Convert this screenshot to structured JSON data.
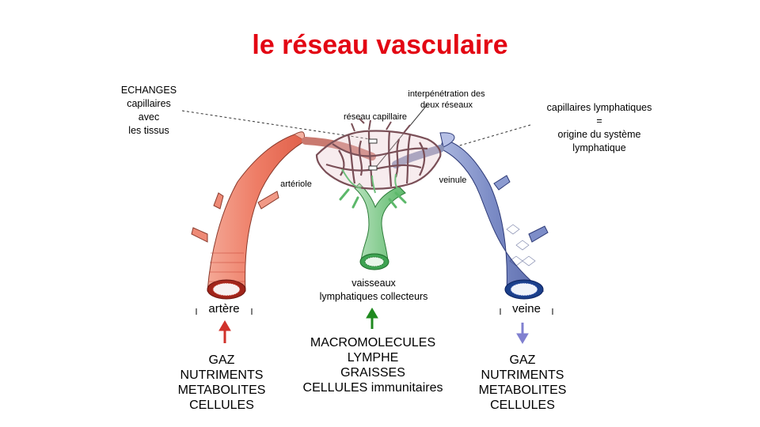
{
  "title": "le réseau vasculaire",
  "labels": {
    "echanges": [
      "ECHANGES",
      "capillaires",
      "avec",
      "les tissus"
    ],
    "interpenetration": [
      "interpénétration des",
      "deux réseaux"
    ],
    "reseau_capillaire": "réseau capillaire",
    "capillaires_lymph": [
      "capillaires lymphatiques",
      "=",
      "origine du système",
      "lymphatique"
    ],
    "arteriole": "artériole",
    "veinule": "veinule",
    "vaisseaux": [
      "vaisseaux",
      "lymphatiques collecteurs"
    ],
    "artere": "artère",
    "veine": "veine"
  },
  "lists": {
    "left": [
      "GAZ",
      "NUTRIMENTS",
      "METABOLITES",
      "CELLULES"
    ],
    "middle": [
      "MACROMOLECULES",
      "LYMPHE",
      "GRAISSES",
      "CELLULES immunitaires"
    ],
    "right": [
      "GAZ",
      "NUTRIMENTS",
      "METABOLITES",
      "CELLULES"
    ]
  },
  "colors": {
    "title": "#e30613",
    "artery": "#f08a78",
    "vein": "#7f8fc4",
    "lymph": "#8fd09a",
    "arrow_left": "#d0322b",
    "arrow_middle": "#1f8a1f",
    "arrow_right": "#8080d0"
  },
  "arrows": {
    "left": "up-arrow",
    "middle": "up-arrow",
    "right": "down-arrow"
  }
}
